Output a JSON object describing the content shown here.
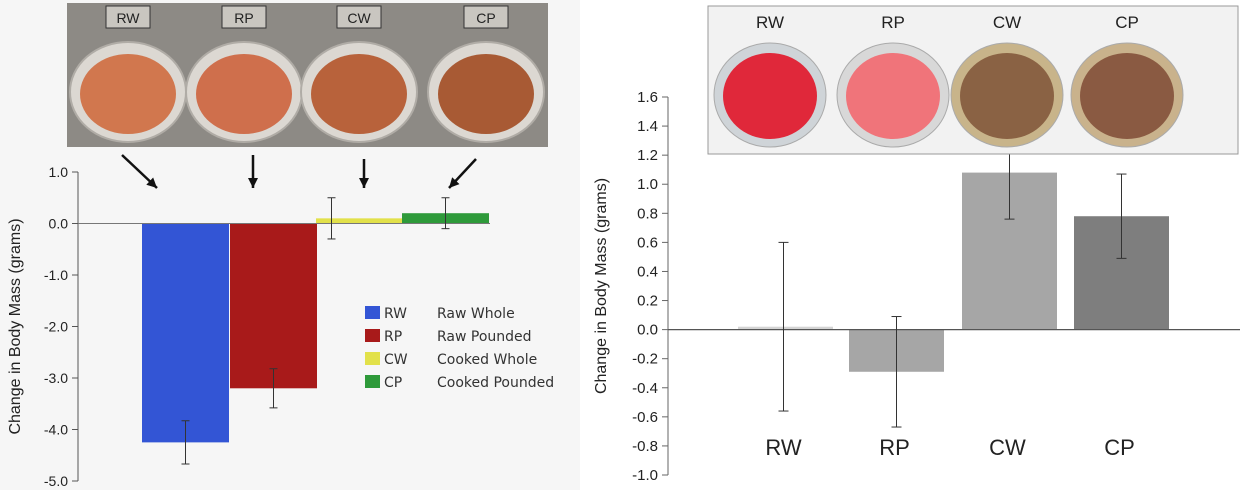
{
  "chart_data": [
    {
      "type": "bar",
      "categories": [
        "RW",
        "RP",
        "CW",
        "CP"
      ],
      "values": [
        -4.25,
        -3.2,
        0.1,
        0.2
      ],
      "error": [
        0.42,
        0.38,
        0.4,
        0.3
      ],
      "colors": [
        "#3355d5",
        "#a81a1a",
        "#e2e14a",
        "#2e9a3a"
      ],
      "photo_labels": [
        "RW",
        "RP",
        "CW",
        "CP"
      ],
      "ylabel": "Change in Body Mass (grams)",
      "ylim": [
        -5.0,
        1.0
      ],
      "yticks": [
        "1.0",
        "0.0",
        "-1.0",
        "-2.0",
        "-3.0",
        "-4.0",
        "-5.0"
      ],
      "legend": [
        {
          "code": "RW",
          "name": "Raw Whole"
        },
        {
          "code": "RP",
          "name": "Raw  Pounded"
        },
        {
          "code": "CW",
          "name": "Cooked Whole"
        },
        {
          "code": "CP",
          "name": "Cooked Pounded"
        }
      ],
      "legend_position": "right",
      "grid": false
    },
    {
      "type": "bar",
      "categories": [
        "RW",
        "RP",
        "CW",
        "CP"
      ],
      "values": [
        0.02,
        -0.29,
        1.08,
        0.78
      ],
      "error": [
        0.58,
        0.38,
        0.32,
        0.29
      ],
      "colors": [
        "#d4d4d4",
        "#a6a6a6",
        "#a6a6a6",
        "#7e7e7e"
      ],
      "photo_labels": [
        "RW",
        "RP",
        "CW",
        "CP"
      ],
      "ylabel": "Change in Body Mass (grams)",
      "ylim": [
        -1.0,
        1.6
      ],
      "yticks": [
        "1.6",
        "1.4",
        "1.2",
        "1.0",
        "0.8",
        "0.6",
        "0.4",
        "0.2",
        "0.0",
        "-0.2",
        "-0.4",
        "-0.6",
        "-0.8",
        "-1.0"
      ],
      "grid": false
    }
  ]
}
